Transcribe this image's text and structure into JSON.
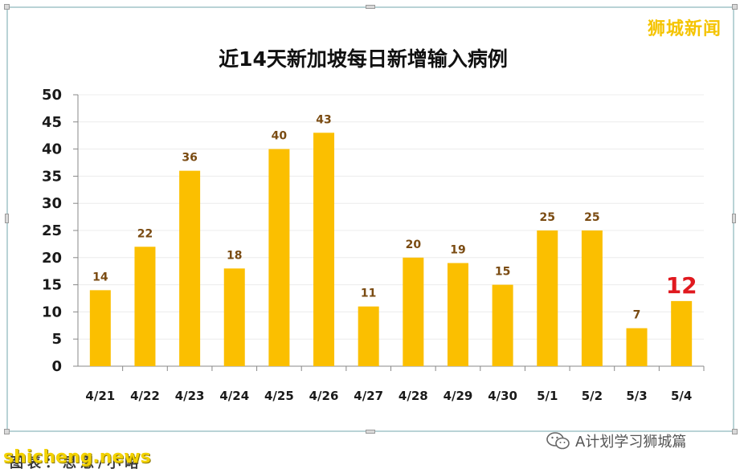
{
  "brand": {
    "name": "狮城新闻"
  },
  "footer": {
    "watermark": "shicheng.news",
    "caption": "图表：思思/小略",
    "wechat_account": "A计划学习狮城篇"
  },
  "chart_data": {
    "type": "bar",
    "title": "近14天新加坡每日新增输入病例",
    "categories": [
      "4/21",
      "4/22",
      "4/23",
      "4/24",
      "4/25",
      "4/26",
      "4/27",
      "4/28",
      "4/29",
      "4/30",
      "5/1",
      "5/2",
      "5/3",
      "5/4"
    ],
    "values": [
      14,
      22,
      36,
      18,
      40,
      43,
      11,
      20,
      19,
      15,
      25,
      25,
      7,
      12
    ],
    "highlight_index": 13,
    "ylim": [
      0,
      50
    ],
    "yticks": [
      0,
      5,
      10,
      15,
      20,
      25,
      30,
      35,
      40,
      45,
      50
    ],
    "xlabel": "",
    "ylabel": "",
    "grid": true,
    "colors": {
      "bar": "#fbbf00",
      "label": "#7a4b12",
      "highlight": "#e0191f",
      "grid": "#ececec"
    }
  }
}
